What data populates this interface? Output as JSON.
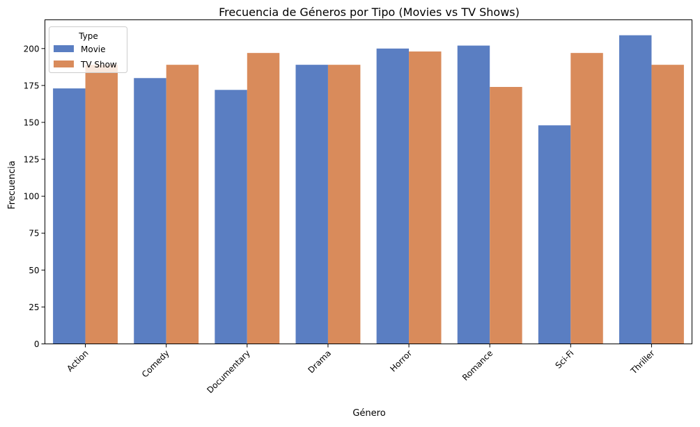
{
  "chart_data": {
    "type": "bar",
    "title": "Frecuencia de Géneros por Tipo (Movies vs TV Shows)",
    "xlabel": "Género",
    "ylabel": "Frecuencia",
    "categories": [
      "Action",
      "Comedy",
      "Documentary",
      "Drama",
      "Horror",
      "Romance",
      "Sci-Fi",
      "Thriller"
    ],
    "series": [
      {
        "name": "Movie",
        "color": "#5a7ec2",
        "values": [
          173,
          180,
          172,
          189,
          200,
          202,
          148,
          209
        ]
      },
      {
        "name": "TV Show",
        "color": "#d98b5b",
        "values": [
          189,
          189,
          197,
          189,
          198,
          174,
          197,
          189
        ]
      }
    ],
    "ylim": [
      0,
      219.45
    ],
    "yticks": [
      0,
      25,
      50,
      75,
      100,
      125,
      150,
      175,
      200
    ],
    "legend": {
      "title": "Type",
      "position": "top-left"
    },
    "grid": false,
    "xtick_rotation": 45
  }
}
